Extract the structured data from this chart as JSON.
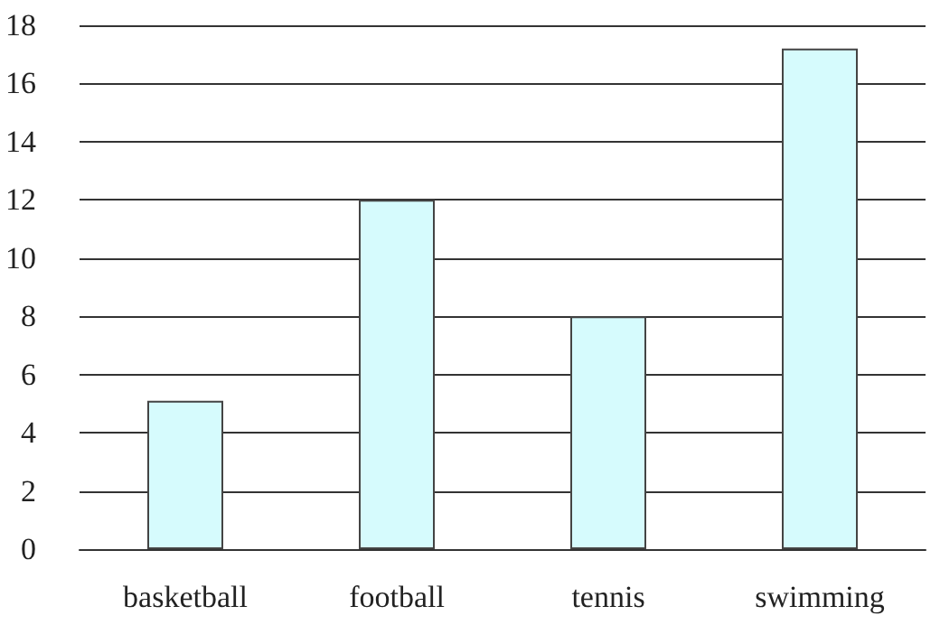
{
  "chart_data": {
    "type": "bar",
    "categories": [
      "basketball",
      "football",
      "tennis",
      "swimming"
    ],
    "values": [
      5.1,
      12,
      8,
      17.2
    ],
    "color": "#d6fbfd",
    "ylim": [
      0,
      18
    ],
    "yticks": [
      0,
      2,
      4,
      6,
      8,
      10,
      12,
      14,
      16,
      18
    ],
    "grid": "y"
  }
}
